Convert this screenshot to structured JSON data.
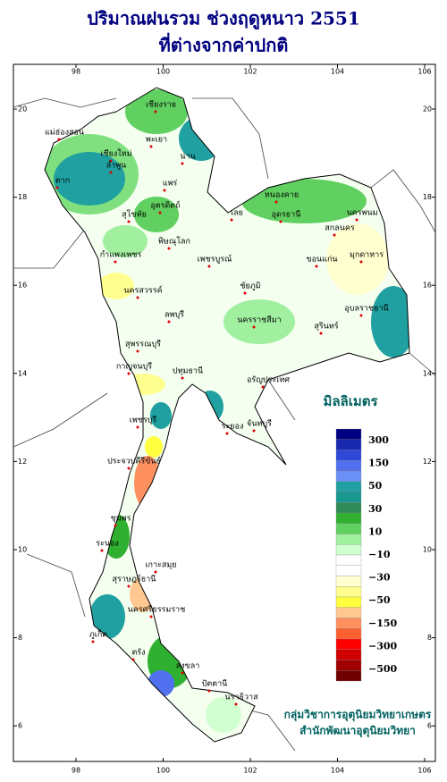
{
  "header": {
    "title": "ปริมาณฝนรวม ช่วงฤดูหนาว 2551",
    "subtitle": "ที่ต่างจากค่าปกติ"
  },
  "map": {
    "lon_ticks": [
      98,
      100,
      102,
      104,
      106
    ],
    "lat_ticks": [
      20,
      18,
      16,
      14,
      12,
      10,
      8,
      6
    ],
    "provinces": [
      "แม่ฮ่องสอน",
      "เชียงราย",
      "เชียงใหม่",
      "ลำพูน",
      "พะเยา",
      "น่าน",
      "แพร่",
      "ตาก",
      "อุตรดิตถ์",
      "สุโขทัย",
      "พิษณุโลก",
      "หนองคาย",
      "อุดรธานี",
      "เลย",
      "สกลนคร",
      "นครพนม",
      "มุกดาหาร",
      "กำแพงเพชร",
      "เพชรบูรณ์",
      "ขอนแก่น",
      "นครสวรรค์",
      "ชัยภูมิ",
      "อุบลราชธานี",
      "ลพบุรี",
      "นครราชสีมา",
      "สุรินทร์",
      "กาญจนบุรี",
      "สุพรรณบุรี",
      "ปทุมธานี",
      "อรัญประเทศ",
      "เพชรบุรี",
      "ระยอง",
      "จันทบุรี",
      "ประจวบคีรีขันธ์",
      "ชุมพร",
      "ระนอง",
      "เกาะสมุย",
      "สุราษฎร์ธานี",
      "นครศรีธรรมราช",
      "ภูเก็ต",
      "ตรัง",
      "สงขลา",
      "ปัตตานี",
      "นราธิวาส"
    ]
  },
  "legend": {
    "title": "มิลลิเมตร",
    "colors": [
      "#000080",
      "#1a2ab0",
      "#3048d8",
      "#5070f0",
      "#6a90f8",
      "#20a0a0",
      "#189890",
      "#2e8b57",
      "#30b030",
      "#60d060",
      "#a0f0a0",
      "#d0ffd0",
      "#ffffff",
      "#ffffff",
      "#ffffd0",
      "#ffff90",
      "#ffff40",
      "#ffc890",
      "#ff9060",
      "#ff6030",
      "#ff0000",
      "#d00000",
      "#a00000",
      "#700000"
    ],
    "labels": [
      "300",
      "150",
      "50",
      "30",
      "10",
      "−10",
      "−30",
      "−50",
      "−150",
      "−300",
      "−500"
    ]
  },
  "credit": {
    "line1": "กลุ่มวิชาการอุตุนิยมวิทยาเกษตร",
    "line2": "สำนักพัฒนาอุตุนิยมวิทยา"
  }
}
